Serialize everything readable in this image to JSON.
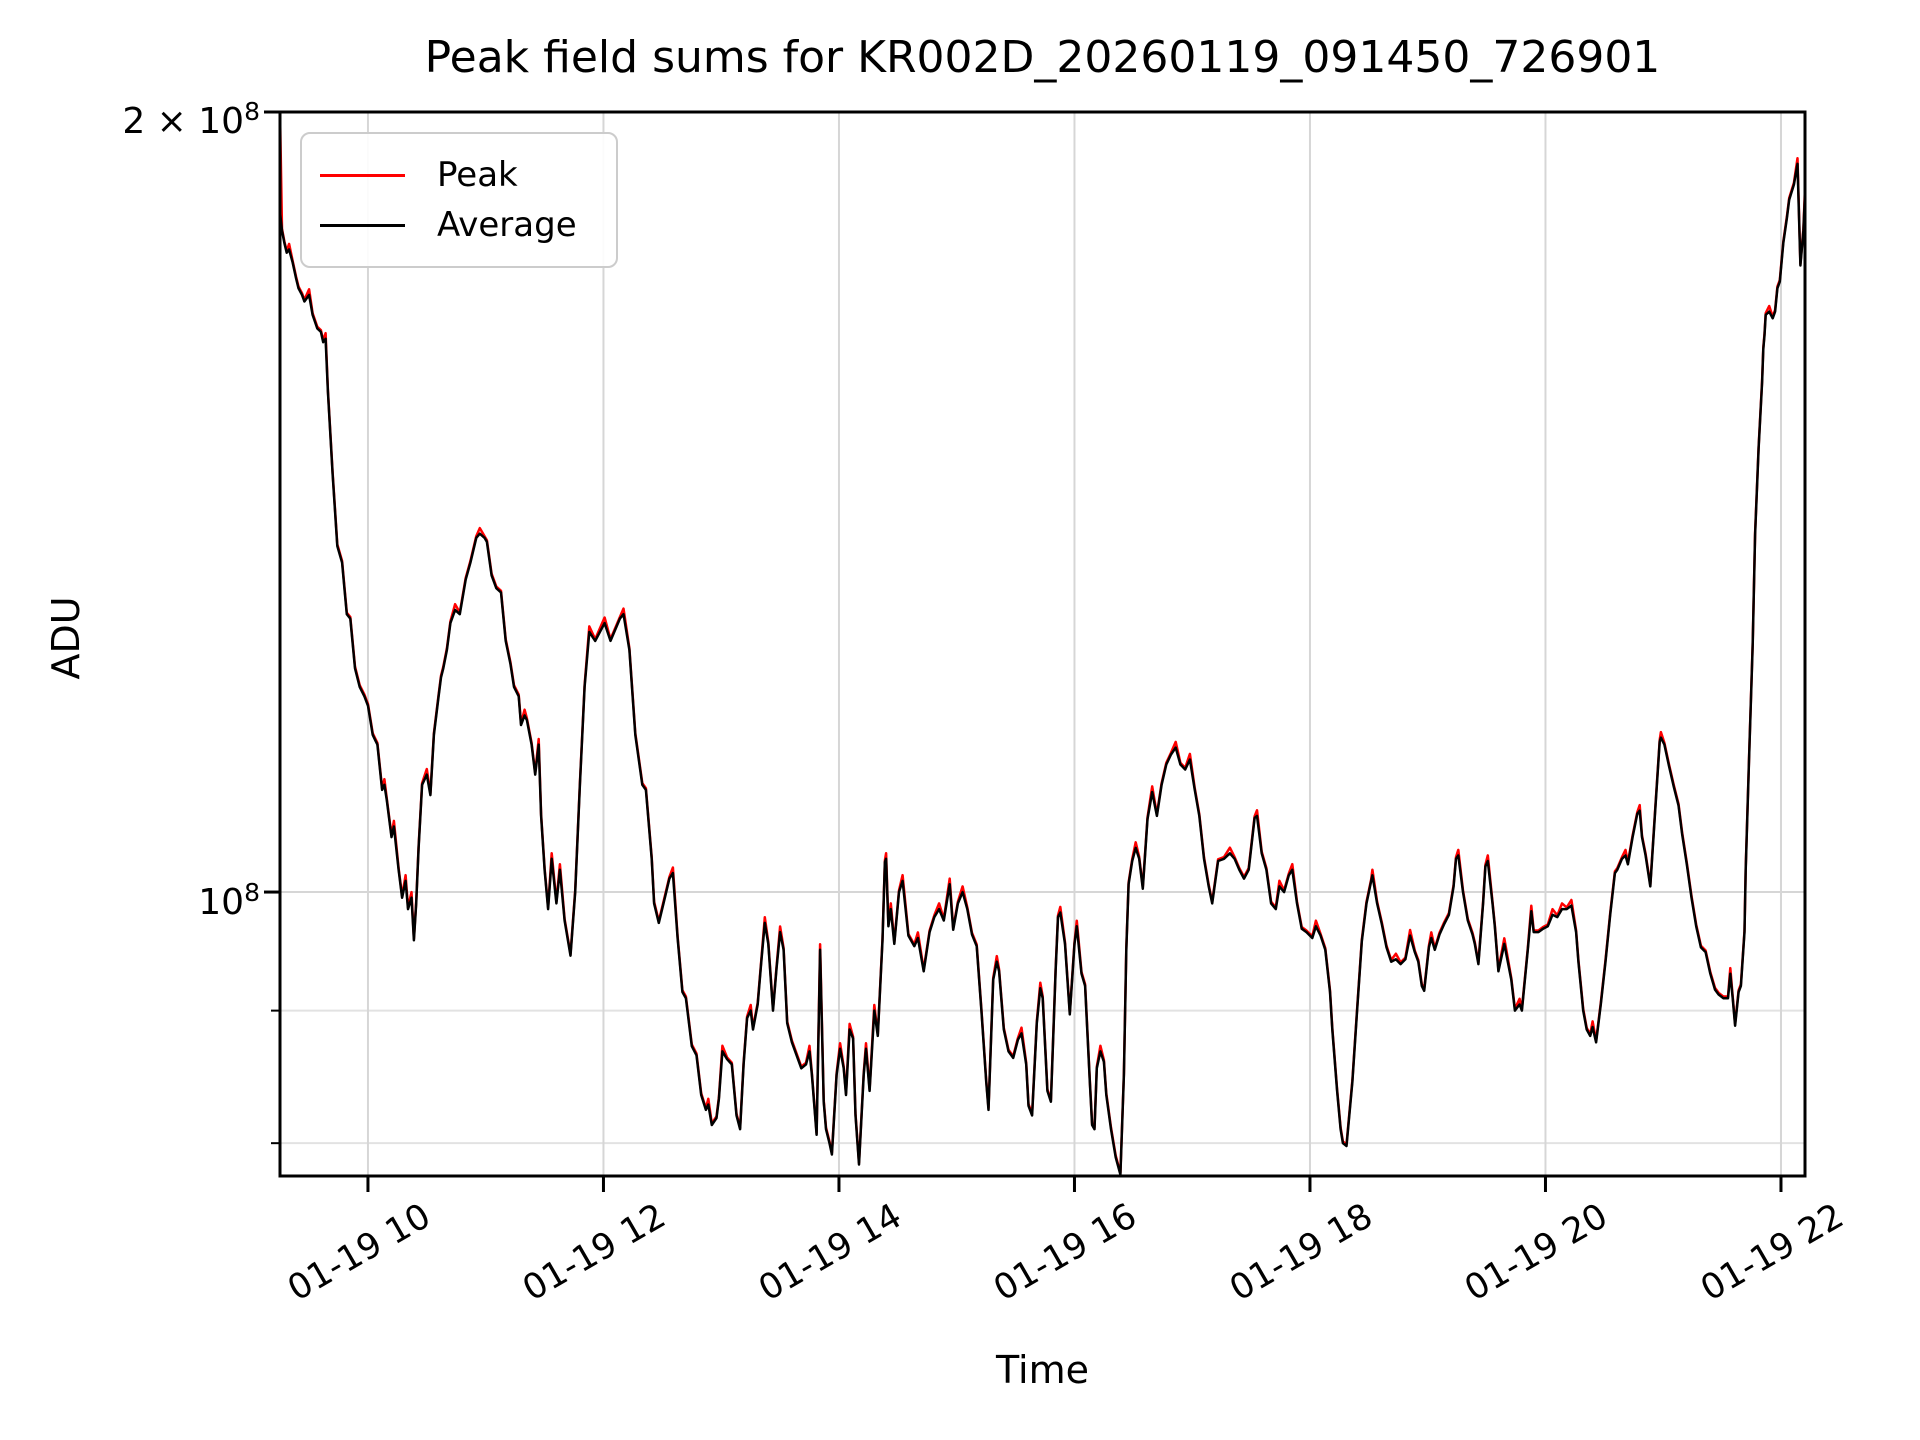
{
  "page": {
    "background": "#ffffff"
  },
  "chart_data": {
    "type": "line",
    "title": "Peak field sums for KR002D_20260119_091450_726901",
    "xlabel": "Time",
    "ylabel": "ADU",
    "yscale": "log",
    "grid": true,
    "legend": {
      "position": "upper left",
      "entries": [
        {
          "label": "Peak",
          "color": "#ff0000"
        },
        {
          "label": "Average",
          "color": "#000000"
        }
      ]
    },
    "colors": {
      "peak": "#ff0000",
      "average": "#000000",
      "spine": "#000000",
      "grid_major": "#d6d6d6",
      "grid_minor": "#e2e2e2",
      "legend_border": "#cccccc"
    },
    "value_unit": 100000000,
    "ylim_units": [
      0.777,
      2.0
    ],
    "xlim_hours": [
      9.253,
      22.204
    ],
    "x_tick_date": "01-19",
    "xticks": [
      {
        "hour": 10,
        "label": "01-19 10"
      },
      {
        "hour": 12,
        "label": "01-19 12"
      },
      {
        "hour": 14,
        "label": "01-19 14"
      },
      {
        "hour": 16,
        "label": "01-19 16"
      },
      {
        "hour": 18,
        "label": "01-19 18"
      },
      {
        "hour": 20,
        "label": "01-19 20"
      },
      {
        "hour": 22,
        "label": "01-19 22"
      }
    ],
    "yticks_major": [
      {
        "value_units": 2.0,
        "prefix": "2 × ",
        "base": "10",
        "exp": "8"
      },
      {
        "value_units": 1.0,
        "prefix": "",
        "base": "10",
        "exp": "8"
      }
    ],
    "yticks_minor_units": [
      0.9,
      0.8
    ],
    "peak_rule": {
      "description": "Peak series hugs Average from above; visible as thin red tips at local maxima and a vertical spike at the first sample",
      "base_factor": 1.0015,
      "tip_factor": 1.005,
      "first_point_value_units": 2.0
    },
    "average_points": [
      [
        9.253,
        1.83
      ],
      [
        9.27,
        1.8
      ],
      [
        9.29,
        1.78
      ],
      [
        9.31,
        1.765
      ],
      [
        9.33,
        1.77
      ],
      [
        9.36,
        1.75
      ],
      [
        9.39,
        1.725
      ],
      [
        9.41,
        1.71
      ],
      [
        9.44,
        1.7
      ],
      [
        9.46,
        1.69
      ],
      [
        9.5,
        1.7
      ],
      [
        9.53,
        1.67
      ],
      [
        9.57,
        1.65
      ],
      [
        9.6,
        1.645
      ],
      [
        9.62,
        1.63
      ],
      [
        9.64,
        1.635
      ],
      [
        9.66,
        1.56
      ],
      [
        9.7,
        1.45
      ],
      [
        9.74,
        1.36
      ],
      [
        9.78,
        1.34
      ],
      [
        9.8,
        1.31
      ],
      [
        9.82,
        1.28
      ],
      [
        9.85,
        1.275
      ],
      [
        9.89,
        1.22
      ],
      [
        9.93,
        1.2
      ],
      [
        9.97,
        1.19
      ],
      [
        10.0,
        1.18
      ],
      [
        10.04,
        1.15
      ],
      [
        10.06,
        1.145
      ],
      [
        10.08,
        1.14
      ],
      [
        10.12,
        1.095
      ],
      [
        10.14,
        1.1
      ],
      [
        10.16,
        1.085
      ],
      [
        10.2,
        1.05
      ],
      [
        10.22,
        1.06
      ],
      [
        10.26,
        1.02
      ],
      [
        10.29,
        0.995
      ],
      [
        10.32,
        1.01
      ],
      [
        10.34,
        0.985
      ],
      [
        10.37,
        0.995
      ],
      [
        10.39,
        0.958
      ],
      [
        10.41,
        0.99
      ],
      [
        10.43,
        1.04
      ],
      [
        10.46,
        1.1
      ],
      [
        10.5,
        1.11
      ],
      [
        10.53,
        1.09
      ],
      [
        10.56,
        1.15
      ],
      [
        10.6,
        1.19
      ],
      [
        10.62,
        1.21
      ],
      [
        10.64,
        1.22
      ],
      [
        10.67,
        1.24
      ],
      [
        10.7,
        1.27
      ],
      [
        10.74,
        1.285
      ],
      [
        10.78,
        1.28
      ],
      [
        10.83,
        1.32
      ],
      [
        10.87,
        1.34
      ],
      [
        10.92,
        1.37
      ],
      [
        10.95,
        1.375
      ],
      [
        10.99,
        1.37
      ],
      [
        11.01,
        1.365
      ],
      [
        11.05,
        1.325
      ],
      [
        11.09,
        1.31
      ],
      [
        11.13,
        1.305
      ],
      [
        11.17,
        1.25
      ],
      [
        11.21,
        1.225
      ],
      [
        11.24,
        1.2
      ],
      [
        11.28,
        1.19
      ],
      [
        11.3,
        1.16
      ],
      [
        11.33,
        1.17
      ],
      [
        11.35,
        1.165
      ],
      [
        11.39,
        1.14
      ],
      [
        11.42,
        1.11
      ],
      [
        11.45,
        1.14
      ],
      [
        11.47,
        1.07
      ],
      [
        11.5,
        1.02
      ],
      [
        11.53,
        0.985
      ],
      [
        11.56,
        1.03
      ],
      [
        11.6,
        0.99
      ],
      [
        11.63,
        1.02
      ],
      [
        11.67,
        0.975
      ],
      [
        11.72,
        0.945
      ],
      [
        11.76,
        1.0
      ],
      [
        11.8,
        1.1
      ],
      [
        11.84,
        1.2
      ],
      [
        11.88,
        1.26
      ],
      [
        11.93,
        1.25
      ],
      [
        12.01,
        1.27
      ],
      [
        12.06,
        1.25
      ],
      [
        12.14,
        1.275
      ],
      [
        12.17,
        1.28
      ],
      [
        12.22,
        1.24
      ],
      [
        12.27,
        1.15
      ],
      [
        12.33,
        1.1
      ],
      [
        12.36,
        1.095
      ],
      [
        12.41,
        1.03
      ],
      [
        12.43,
        0.99
      ],
      [
        12.47,
        0.973
      ],
      [
        12.51,
        0.99
      ],
      [
        12.56,
        1.012
      ],
      [
        12.59,
        1.017
      ],
      [
        12.63,
        0.96
      ],
      [
        12.67,
        0.915
      ],
      [
        12.7,
        0.91
      ],
      [
        12.75,
        0.872
      ],
      [
        12.79,
        0.865
      ],
      [
        12.83,
        0.835
      ],
      [
        12.87,
        0.824
      ],
      [
        12.89,
        0.828
      ],
      [
        12.92,
        0.813
      ],
      [
        12.96,
        0.818
      ],
      [
        12.98,
        0.832
      ],
      [
        13.01,
        0.868
      ],
      [
        13.05,
        0.862
      ],
      [
        13.09,
        0.858
      ],
      [
        13.13,
        0.82
      ],
      [
        13.16,
        0.81
      ],
      [
        13.19,
        0.858
      ],
      [
        13.22,
        0.894
      ],
      [
        13.25,
        0.9
      ],
      [
        13.27,
        0.885
      ],
      [
        13.31,
        0.905
      ],
      [
        13.34,
        0.94
      ],
      [
        13.37,
        0.973
      ],
      [
        13.4,
        0.955
      ],
      [
        13.44,
        0.9
      ],
      [
        13.47,
        0.935
      ],
      [
        13.5,
        0.965
      ],
      [
        13.53,
        0.95
      ],
      [
        13.56,
        0.89
      ],
      [
        13.6,
        0.875
      ],
      [
        13.64,
        0.865
      ],
      [
        13.68,
        0.855
      ],
      [
        13.72,
        0.858
      ],
      [
        13.75,
        0.868
      ],
      [
        13.77,
        0.85
      ],
      [
        13.81,
        0.806
      ],
      [
        13.84,
        0.95
      ],
      [
        13.87,
        0.83
      ],
      [
        13.89,
        0.81
      ],
      [
        13.92,
        0.8
      ],
      [
        13.94,
        0.792
      ],
      [
        13.98,
        0.85
      ],
      [
        14.01,
        0.87
      ],
      [
        14.04,
        0.855
      ],
      [
        14.06,
        0.835
      ],
      [
        14.09,
        0.885
      ],
      [
        14.12,
        0.878
      ],
      [
        14.14,
        0.82
      ],
      [
        14.17,
        0.785
      ],
      [
        14.21,
        0.85
      ],
      [
        14.23,
        0.87
      ],
      [
        14.26,
        0.838
      ],
      [
        14.3,
        0.9
      ],
      [
        14.33,
        0.88
      ],
      [
        14.37,
        0.958
      ],
      [
        14.39,
        1.027
      ],
      [
        14.4,
        1.03
      ],
      [
        14.42,
        0.97
      ],
      [
        14.44,
        0.985
      ],
      [
        14.47,
        0.955
      ],
      [
        14.51,
        1.0
      ],
      [
        14.54,
        1.01
      ],
      [
        14.59,
        0.962
      ],
      [
        14.64,
        0.953
      ],
      [
        14.67,
        0.96
      ],
      [
        14.72,
        0.932
      ],
      [
        14.77,
        0.965
      ],
      [
        14.81,
        0.978
      ],
      [
        14.85,
        0.985
      ],
      [
        14.89,
        0.975
      ],
      [
        14.94,
        1.007
      ],
      [
        14.97,
        0.967
      ],
      [
        15.01,
        0.99
      ],
      [
        15.05,
        1.0
      ],
      [
        15.09,
        0.985
      ],
      [
        15.13,
        0.963
      ],
      [
        15.17,
        0.953
      ],
      [
        15.21,
        0.9
      ],
      [
        15.25,
        0.845
      ],
      [
        15.27,
        0.824
      ],
      [
        15.31,
        0.925
      ],
      [
        15.34,
        0.94
      ],
      [
        15.36,
        0.932
      ],
      [
        15.4,
        0.885
      ],
      [
        15.44,
        0.868
      ],
      [
        15.48,
        0.863
      ],
      [
        15.52,
        0.877
      ],
      [
        15.55,
        0.882
      ],
      [
        15.59,
        0.858
      ],
      [
        15.61,
        0.827
      ],
      [
        15.64,
        0.82
      ],
      [
        15.68,
        0.89
      ],
      [
        15.71,
        0.918
      ],
      [
        15.73,
        0.91
      ],
      [
        15.77,
        0.838
      ],
      [
        15.8,
        0.83
      ],
      [
        15.84,
        0.932
      ],
      [
        15.86,
        0.978
      ],
      [
        15.88,
        0.982
      ],
      [
        15.92,
        0.955
      ],
      [
        15.96,
        0.897
      ],
      [
        16.0,
        0.955
      ],
      [
        16.02,
        0.97
      ],
      [
        16.06,
        0.93
      ],
      [
        16.09,
        0.92
      ],
      [
        16.13,
        0.845
      ],
      [
        16.15,
        0.813
      ],
      [
        16.17,
        0.81
      ],
      [
        16.19,
        0.855
      ],
      [
        16.22,
        0.868
      ],
      [
        16.25,
        0.86
      ],
      [
        16.27,
        0.835
      ],
      [
        16.31,
        0.81
      ],
      [
        16.35,
        0.79
      ],
      [
        16.39,
        0.778
      ],
      [
        16.42,
        0.85
      ],
      [
        16.44,
        0.95
      ],
      [
        16.46,
        1.007
      ],
      [
        16.49,
        1.028
      ],
      [
        16.52,
        1.04
      ],
      [
        16.55,
        1.03
      ],
      [
        16.58,
        1.003
      ],
      [
        16.62,
        1.067
      ],
      [
        16.66,
        1.093
      ],
      [
        16.7,
        1.07
      ],
      [
        16.74,
        1.1
      ],
      [
        16.78,
        1.12
      ],
      [
        16.82,
        1.13
      ],
      [
        16.86,
        1.137
      ],
      [
        16.9,
        1.12
      ],
      [
        16.94,
        1.115
      ],
      [
        16.98,
        1.125
      ],
      [
        17.02,
        1.096
      ],
      [
        17.06,
        1.07
      ],
      [
        17.1,
        1.03
      ],
      [
        17.14,
        1.005
      ],
      [
        17.17,
        0.99
      ],
      [
        17.22,
        1.028
      ],
      [
        17.27,
        1.03
      ],
      [
        17.32,
        1.035
      ],
      [
        17.36,
        1.03
      ],
      [
        17.4,
        1.02
      ],
      [
        17.44,
        1.012
      ],
      [
        17.48,
        1.02
      ],
      [
        17.53,
        1.068
      ],
      [
        17.55,
        1.07
      ],
      [
        17.59,
        1.035
      ],
      [
        17.63,
        1.02
      ],
      [
        17.67,
        0.99
      ],
      [
        17.71,
        0.985
      ],
      [
        17.74,
        1.005
      ],
      [
        17.78,
        1.0
      ],
      [
        17.82,
        1.015
      ],
      [
        17.85,
        1.02
      ],
      [
        17.89,
        0.99
      ],
      [
        17.93,
        0.968
      ],
      [
        17.97,
        0.965
      ],
      [
        18.02,
        0.96
      ],
      [
        18.05,
        0.97
      ],
      [
        18.09,
        0.962
      ],
      [
        18.13,
        0.95
      ],
      [
        18.17,
        0.915
      ],
      [
        18.19,
        0.885
      ],
      [
        18.23,
        0.838
      ],
      [
        18.26,
        0.81
      ],
      [
        18.28,
        0.8
      ],
      [
        18.31,
        0.798
      ],
      [
        18.36,
        0.845
      ],
      [
        18.4,
        0.9
      ],
      [
        18.44,
        0.957
      ],
      [
        18.48,
        0.99
      ],
      [
        18.52,
        1.01
      ],
      [
        18.53,
        1.015
      ],
      [
        18.57,
        0.99
      ],
      [
        18.61,
        0.972
      ],
      [
        18.65,
        0.952
      ],
      [
        18.69,
        0.94
      ],
      [
        18.73,
        0.942
      ],
      [
        18.77,
        0.938
      ],
      [
        18.81,
        0.942
      ],
      [
        18.85,
        0.962
      ],
      [
        18.89,
        0.948
      ],
      [
        18.92,
        0.94
      ],
      [
        18.95,
        0.92
      ],
      [
        18.97,
        0.916
      ],
      [
        19.01,
        0.952
      ],
      [
        19.03,
        0.96
      ],
      [
        19.06,
        0.95
      ],
      [
        19.1,
        0.963
      ],
      [
        19.14,
        0.972
      ],
      [
        19.18,
        0.98
      ],
      [
        19.22,
        1.005
      ],
      [
        19.24,
        1.03
      ],
      [
        19.26,
        1.033
      ],
      [
        19.3,
        1.0
      ],
      [
        19.34,
        0.975
      ],
      [
        19.38,
        0.963
      ],
      [
        19.4,
        0.955
      ],
      [
        19.43,
        0.938
      ],
      [
        19.47,
        0.99
      ],
      [
        19.49,
        1.023
      ],
      [
        19.51,
        1.028
      ],
      [
        19.55,
        0.99
      ],
      [
        19.57,
        0.97
      ],
      [
        19.6,
        0.932
      ],
      [
        19.65,
        0.955
      ],
      [
        19.71,
        0.925
      ],
      [
        19.74,
        0.9
      ],
      [
        19.78,
        0.905
      ],
      [
        19.8,
        0.9
      ],
      [
        19.85,
        0.95
      ],
      [
        19.88,
        0.983
      ],
      [
        19.9,
        0.965
      ],
      [
        19.94,
        0.965
      ],
      [
        19.98,
        0.968
      ],
      [
        20.02,
        0.97
      ],
      [
        20.06,
        0.98
      ],
      [
        20.1,
        0.978
      ],
      [
        20.14,
        0.985
      ],
      [
        20.18,
        0.985
      ],
      [
        20.22,
        0.988
      ],
      [
        20.26,
        0.965
      ],
      [
        20.28,
        0.94
      ],
      [
        20.32,
        0.9
      ],
      [
        20.35,
        0.885
      ],
      [
        20.38,
        0.88
      ],
      [
        20.4,
        0.887
      ],
      [
        20.43,
        0.875
      ],
      [
        20.47,
        0.905
      ],
      [
        20.51,
        0.94
      ],
      [
        20.55,
        0.98
      ],
      [
        20.59,
        1.017
      ],
      [
        20.61,
        1.02
      ],
      [
        20.65,
        1.03
      ],
      [
        20.68,
        1.033
      ],
      [
        20.7,
        1.025
      ],
      [
        20.74,
        1.05
      ],
      [
        20.78,
        1.072
      ],
      [
        20.8,
        1.075
      ],
      [
        20.82,
        1.05
      ],
      [
        20.85,
        1.033
      ],
      [
        20.89,
        1.005
      ],
      [
        20.93,
        1.072
      ],
      [
        20.97,
        1.143
      ],
      [
        20.98,
        1.147
      ],
      [
        21.01,
        1.14
      ],
      [
        21.05,
        1.118
      ],
      [
        21.09,
        1.098
      ],
      [
        21.13,
        1.08
      ],
      [
        21.16,
        1.053
      ],
      [
        21.2,
        1.025
      ],
      [
        21.24,
        0.995
      ],
      [
        21.28,
        0.97
      ],
      [
        21.32,
        0.952
      ],
      [
        21.36,
        0.948
      ],
      [
        21.4,
        0.93
      ],
      [
        21.44,
        0.917
      ],
      [
        21.47,
        0.913
      ],
      [
        21.51,
        0.91
      ],
      [
        21.55,
        0.91
      ],
      [
        21.57,
        0.93
      ],
      [
        21.59,
        0.91
      ],
      [
        21.61,
        0.888
      ],
      [
        21.64,
        0.915
      ],
      [
        21.66,
        0.92
      ],
      [
        21.69,
        0.965
      ],
      [
        21.7,
        1.02
      ],
      [
        21.73,
        1.13
      ],
      [
        21.76,
        1.246
      ],
      [
        21.78,
        1.374
      ],
      [
        21.81,
        1.483
      ],
      [
        21.84,
        1.573
      ],
      [
        21.85,
        1.62
      ],
      [
        21.86,
        1.64
      ],
      [
        21.87,
        1.67
      ],
      [
        21.9,
        1.675
      ],
      [
        21.93,
        1.665
      ],
      [
        21.95,
        1.675
      ],
      [
        21.97,
        1.71
      ],
      [
        21.99,
        1.72
      ],
      [
        22.02,
        1.78
      ],
      [
        22.05,
        1.82
      ],
      [
        22.07,
        1.85
      ],
      [
        22.11,
        1.875
      ],
      [
        22.14,
        1.91
      ],
      [
        22.165,
        1.745
      ],
      [
        22.19,
        1.8
      ],
      [
        22.204,
        1.86
      ]
    ]
  }
}
